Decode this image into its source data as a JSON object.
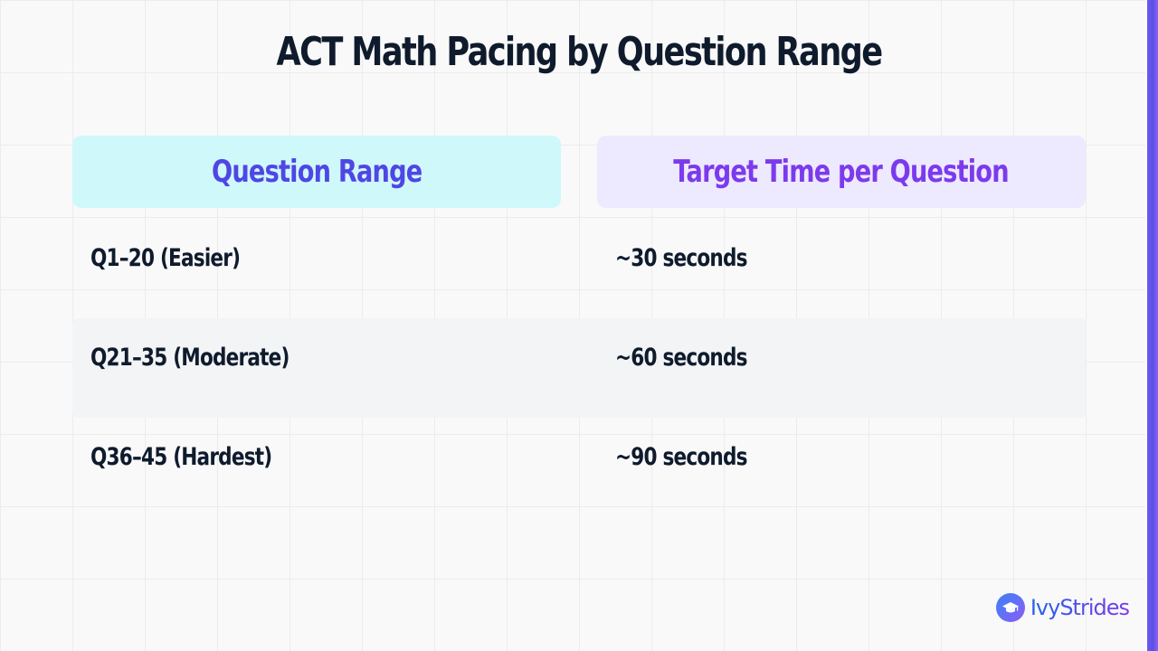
{
  "title": "ACT Math Pacing by Question Range",
  "table": {
    "headers": [
      "Question Range",
      "Target Time per Question"
    ],
    "rows": [
      {
        "range": "Q1–20 (Easier)",
        "time": "~30 seconds"
      },
      {
        "range": "Q21–35 (Moderate)",
        "time": "~60 seconds"
      },
      {
        "range": "Q36–45 (Hardest)",
        "time": "~90 seconds"
      }
    ]
  },
  "brand": {
    "name": "IvyStrides",
    "icon": "graduation-cap-icon"
  },
  "colors": {
    "accent": "#5b4ee6",
    "header_range_bg": "#cff8fb",
    "header_range_text": "#4f46e5",
    "header_time_bg": "#ede9fe",
    "header_time_text": "#7c3aed"
  }
}
